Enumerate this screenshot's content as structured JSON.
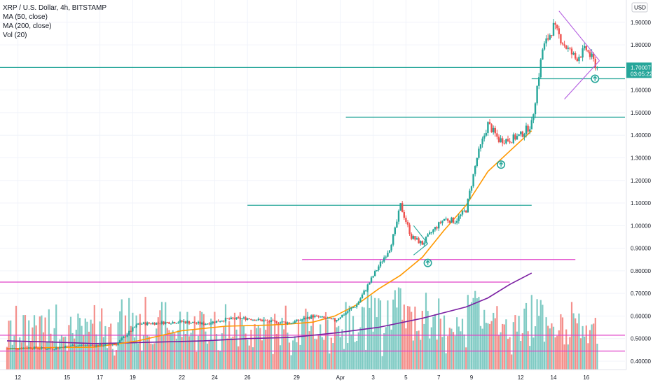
{
  "legend": {
    "title": "XRP / U.S. Dollar, 4h, BITSTAMP",
    "ma50": "MA (50, close)",
    "ma200": "MA (200, close)",
    "vol": "Vol (20)"
  },
  "currency_badge": "USD",
  "price_tag": {
    "price": "1.70007",
    "countdown": "03:05:22"
  },
  "colors": {
    "up": "#26a69a",
    "down": "#ef5350",
    "vol_up": "#80cbc4",
    "vol_down": "#f48f8b",
    "ma50": "#ff9800",
    "ma200": "#7b1fa2",
    "green_level": "#26a69a",
    "pink_level": "#e040c8",
    "triangle": "#b35ce0",
    "price_line": "#26a69a",
    "grid": "#f0f3fa"
  },
  "chart_data": {
    "type": "candlestick",
    "y_axis": {
      "range": [
        0.4,
        1.98
      ],
      "ticks": [
        0.4,
        0.5,
        0.6,
        0.7,
        0.8,
        0.9,
        1.0,
        1.1,
        1.2,
        1.3,
        1.4,
        1.5,
        1.6,
        1.7,
        1.8,
        1.9
      ],
      "tick_labels": [
        "0.40000",
        "0.50000",
        "0.60000",
        "0.70000",
        "0.80000",
        "0.90000",
        "1.00000",
        "1.10000",
        "1.20000",
        "1.30000",
        "1.40000",
        "1.50000",
        "1.60000",
        "1.70000",
        "1.80000",
        "1.90000"
      ]
    },
    "x_axis": {
      "range_days": [
        "Mar 11",
        "Apr 17"
      ],
      "tick_labels": [
        "12",
        "15",
        "17",
        "19",
        "22",
        "24",
        "26",
        "29",
        "Apr",
        "3",
        "5",
        "7",
        "9",
        "12",
        "14",
        "16"
      ]
    },
    "price": {
      "anchors_day_close": [
        [
          0,
          0.455
        ],
        [
          2,
          0.46
        ],
        [
          4,
          0.455
        ],
        [
          6,
          0.47
        ],
        [
          8,
          0.47
        ],
        [
          10,
          0.475
        ],
        [
          12,
          0.565
        ],
        [
          14,
          0.57
        ],
        [
          16,
          0.575
        ],
        [
          18,
          0.565
        ],
        [
          20,
          0.585
        ],
        [
          22,
          0.59
        ],
        [
          24,
          0.575
        ],
        [
          26,
          0.57
        ],
        [
          28,
          0.6
        ],
        [
          30,
          0.58
        ],
        [
          32,
          0.65
        ],
        [
          34,
          0.82
        ],
        [
          35,
          0.9
        ],
        [
          35.5,
          0.98
        ],
        [
          36,
          1.09
        ],
        [
          37,
          0.95
        ],
        [
          38,
          0.92
        ],
        [
          39,
          0.98
        ],
        [
          40,
          1.03
        ],
        [
          41,
          1.02
        ],
        [
          42,
          1.07
        ],
        [
          43,
          1.3
        ],
        [
          44,
          1.45
        ],
        [
          45,
          1.38
        ],
        [
          46,
          1.38
        ],
        [
          47,
          1.4
        ],
        [
          48,
          1.45
        ],
        [
          49,
          1.78
        ],
        [
          50,
          1.88
        ],
        [
          51,
          1.8
        ],
        [
          52,
          1.74
        ],
        [
          53,
          1.78
        ],
        [
          54,
          1.70007
        ]
      ],
      "last": 1.70007
    },
    "ma50": {
      "points": [
        [
          0,
          0.455
        ],
        [
          4,
          0.46
        ],
        [
          8,
          0.462
        ],
        [
          12,
          0.49
        ],
        [
          16,
          0.535
        ],
        [
          20,
          0.555
        ],
        [
          24,
          0.56
        ],
        [
          26,
          0.565
        ],
        [
          28,
          0.573
        ],
        [
          30,
          0.6
        ],
        [
          32,
          0.65
        ],
        [
          34,
          0.72
        ],
        [
          36,
          0.78
        ],
        [
          38,
          0.86
        ],
        [
          40,
          0.98
        ],
        [
          42,
          1.09
        ],
        [
          44,
          1.24
        ],
        [
          46,
          1.33
        ],
        [
          48,
          1.42
        ]
      ]
    },
    "ma200": {
      "points": [
        [
          0,
          0.49
        ],
        [
          4,
          0.485
        ],
        [
          8,
          0.478
        ],
        [
          10,
          0.48
        ],
        [
          14,
          0.485
        ],
        [
          18,
          0.49
        ],
        [
          22,
          0.5
        ],
        [
          26,
          0.505
        ],
        [
          30,
          0.525
        ],
        [
          34,
          0.55
        ],
        [
          38,
          0.59
        ],
        [
          42,
          0.64
        ],
        [
          44,
          0.68
        ],
        [
          46,
          0.74
        ],
        [
          48,
          0.79
        ]
      ]
    },
    "volume": {
      "panel": "bottom",
      "relative_scale_max": 1.0
    },
    "levels": [
      {
        "value": 1.48,
        "from_day": 31,
        "to_day": 54,
        "color": "green"
      },
      {
        "value": 1.09,
        "from_day": 22,
        "to_day": 48,
        "color": "green"
      },
      {
        "value": 1.65,
        "from_day": 48,
        "to_day": 54,
        "color": "green"
      },
      {
        "value": 1.70007,
        "from_day": 0,
        "to_day": 54,
        "color": "price_line"
      },
      {
        "value": 0.85,
        "from_day": 27,
        "to_day": 52,
        "color": "pink"
      },
      {
        "value": 0.75,
        "from_day": 0,
        "to_day": 46,
        "color": "pink"
      },
      {
        "value": 0.515,
        "from_day": 0,
        "to_day": 54,
        "color": "pink"
      },
      {
        "value": 0.445,
        "from_day": 0,
        "to_day": 54,
        "color": "pink"
      }
    ],
    "triangles": [
      {
        "apex_day": 54.2,
        "apex_value": 1.73,
        "upper_start": [
          50.5,
          1.95
        ],
        "lower_start": [
          51,
          1.56
        ],
        "color": "triangle"
      },
      {
        "apex_day": 38.5,
        "apex_value": 0.92,
        "upper_start": [
          37.2,
          1.0
        ],
        "lower_start": [
          37.2,
          0.87
        ],
        "color": "green"
      }
    ],
    "markers": [
      {
        "day": 38.5,
        "value": 0.835,
        "type": "up-arrow-circle"
      },
      {
        "day": 45.2,
        "value": 1.27,
        "type": "up-arrow-circle"
      },
      {
        "day": 53.8,
        "value": 1.65,
        "type": "up-arrow-circle"
      }
    ]
  }
}
